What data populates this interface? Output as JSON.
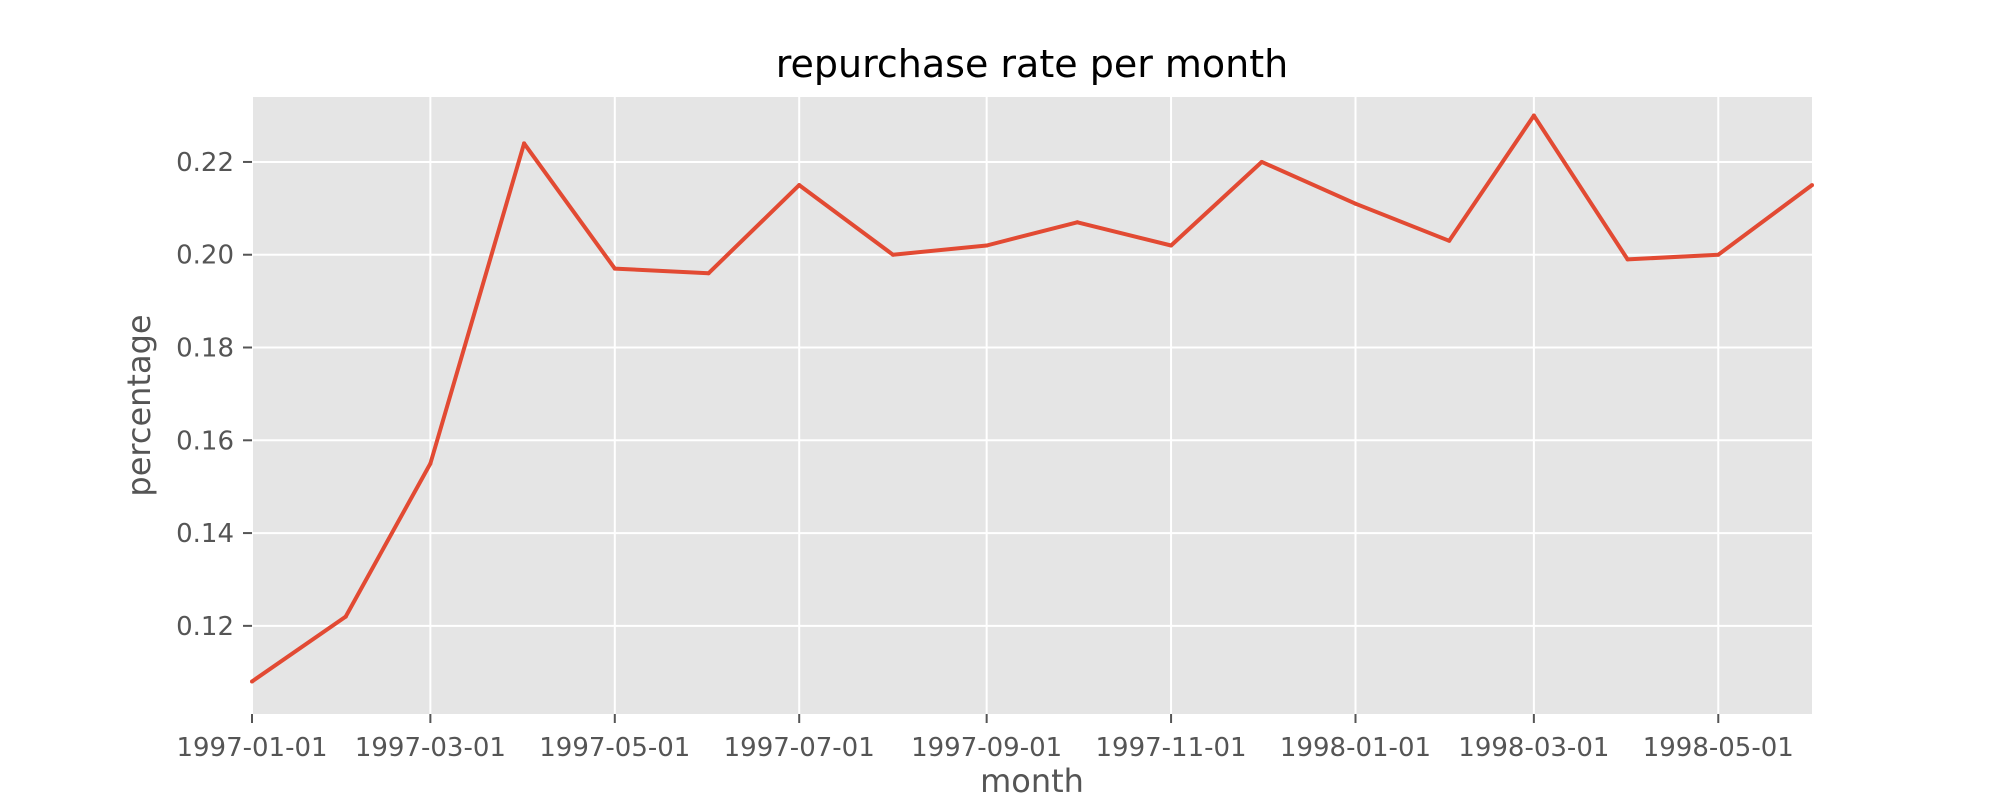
{
  "chart_data": {
    "type": "line",
    "title": "repurchase rate per month",
    "xlabel": "month",
    "ylabel": "percentage",
    "grid": true,
    "legend": "none",
    "background_color": "#e5e5e5",
    "grid_color": "#ffffff",
    "series_color": "#e24a33",
    "x": [
      "1997-01-01",
      "1997-02-01",
      "1997-03-01",
      "1997-04-01",
      "1997-05-01",
      "1997-06-01",
      "1997-07-01",
      "1997-08-01",
      "1997-09-01",
      "1997-10-01",
      "1997-11-01",
      "1997-12-01",
      "1998-01-01",
      "1998-02-01",
      "1998-03-01",
      "1998-04-01",
      "1998-05-01",
      "1998-06-01"
    ],
    "series": [
      {
        "values": [
          0.108,
          0.122,
          0.155,
          0.224,
          0.197,
          0.196,
          0.215,
          0.2,
          0.202,
          0.207,
          0.202,
          0.22,
          0.211,
          0.203,
          0.23,
          0.199,
          0.2,
          0.215
        ]
      }
    ],
    "xlim": [
      "1997-01-01",
      "1998-06-01"
    ],
    "ylim": [
      0.101,
      0.234
    ],
    "xticks": [
      "1997-01-01",
      "1997-03-01",
      "1997-05-01",
      "1997-07-01",
      "1997-09-01",
      "1997-11-01",
      "1998-01-01",
      "1998-03-01",
      "1998-05-01"
    ],
    "yticks": [
      0.12,
      0.14,
      0.16,
      0.18,
      0.2,
      0.22
    ],
    "ytick_labels": [
      "0.12",
      "0.14",
      "0.16",
      "0.18",
      "0.20",
      "0.22"
    ]
  }
}
